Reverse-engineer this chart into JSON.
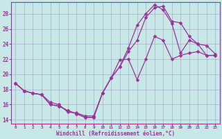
{
  "background_color": "#c8e8e8",
  "grid_color": "#aaaacc",
  "line_color": "#993399",
  "xlabel": "Windchill (Refroidissement éolien,°C)",
  "xlim": [
    -0.5,
    23.5
  ],
  "ylim": [
    13.5,
    29.5
  ],
  "yticks": [
    14,
    16,
    18,
    20,
    22,
    24,
    26,
    28
  ],
  "xticks": [
    0,
    1,
    2,
    3,
    4,
    5,
    6,
    7,
    8,
    9,
    10,
    11,
    12,
    13,
    14,
    15,
    16,
    17,
    18,
    19,
    20,
    21,
    22,
    23
  ],
  "line1_x": [
    0,
    1,
    2,
    3,
    4,
    5,
    6,
    7,
    8,
    9,
    10,
    11,
    12,
    13,
    14,
    15,
    16,
    17,
    18,
    19,
    20,
    21,
    22,
    23
  ],
  "line1_y": [
    18.8,
    17.8,
    17.5,
    17.3,
    16.3,
    16.0,
    15.0,
    14.9,
    14.5,
    14.5,
    17.5,
    19.5,
    21.9,
    22.0,
    19.3,
    22.0,
    25.0,
    24.5,
    22.0,
    22.5,
    22.8,
    23.0,
    22.5,
    22.5
  ],
  "line2_x": [
    0,
    1,
    2,
    3,
    4,
    5,
    6,
    7,
    8,
    9,
    10,
    11,
    12,
    13,
    14,
    15,
    16,
    17,
    18,
    19,
    20,
    21,
    22,
    23
  ],
  "line2_y": [
    18.8,
    17.8,
    17.5,
    17.3,
    16.0,
    15.8,
    15.2,
    14.8,
    14.3,
    14.3,
    17.5,
    19.5,
    21.0,
    23.0,
    24.5,
    27.5,
    28.8,
    29.0,
    27.0,
    26.8,
    25.0,
    24.0,
    23.8,
    22.7
  ],
  "line3_x": [
    0,
    1,
    2,
    3,
    4,
    5,
    6,
    7,
    8,
    9,
    10,
    11,
    12,
    13,
    14,
    15,
    16,
    17,
    18,
    19,
    20,
    21,
    22,
    23
  ],
  "line3_y": [
    18.8,
    17.8,
    17.5,
    17.3,
    16.0,
    15.8,
    15.2,
    14.8,
    14.3,
    14.3,
    17.5,
    19.5,
    21.0,
    23.5,
    26.5,
    28.0,
    29.2,
    28.5,
    26.7,
    22.8,
    24.5,
    24.0,
    22.5,
    22.5
  ]
}
